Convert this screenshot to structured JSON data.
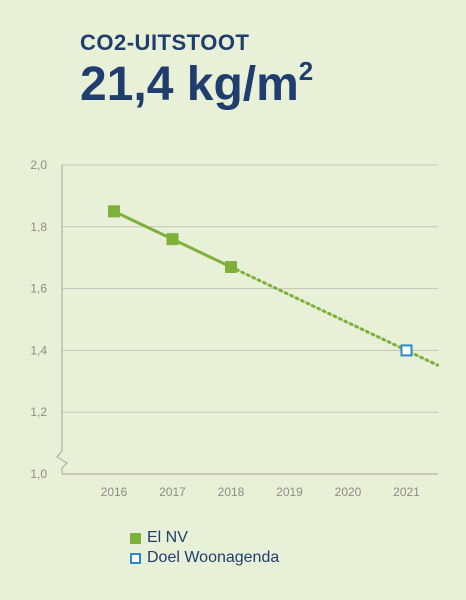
{
  "header": {
    "subtitle": "CO2-UITSTOOT",
    "value": "21,4 kg/m",
    "unit_sup": "2"
  },
  "colors": {
    "background": "#e9f0d8",
    "title": "#1f3e6e",
    "axis": "#a7a493",
    "grid": "#c4c6b4",
    "actual": "#7db13a",
    "target": "#2a8bc8"
  },
  "legend": {
    "actual": "El NV",
    "target": "Doel Woonagenda"
  },
  "chart_data": {
    "type": "line",
    "title": "",
    "xlabel": "",
    "ylabel": "",
    "categories": [
      "2016",
      "2017",
      "2018",
      "2019",
      "2020",
      "2021"
    ],
    "ylim": [
      1.0,
      2.0
    ],
    "yticks": [
      "1,0",
      "1,2",
      "1,4",
      "1,6",
      "1,8",
      "2,0"
    ],
    "grid": true,
    "legend_position": "bottom-left",
    "series": [
      {
        "name": "El NV",
        "marker": "filled-square",
        "points": [
          {
            "x": "2016",
            "y": 1.85
          },
          {
            "x": "2017",
            "y": 1.76
          },
          {
            "x": "2018",
            "y": 1.67
          }
        ]
      },
      {
        "name": "Doel Woonagenda",
        "marker": "hollow-square",
        "points": [
          {
            "x": "2021",
            "y": 1.4
          }
        ]
      }
    ],
    "trend": {
      "style": "dotted",
      "points": [
        {
          "x": "2018",
          "y": 1.67
        },
        {
          "x": "2021",
          "y": 1.4
        }
      ]
    }
  }
}
